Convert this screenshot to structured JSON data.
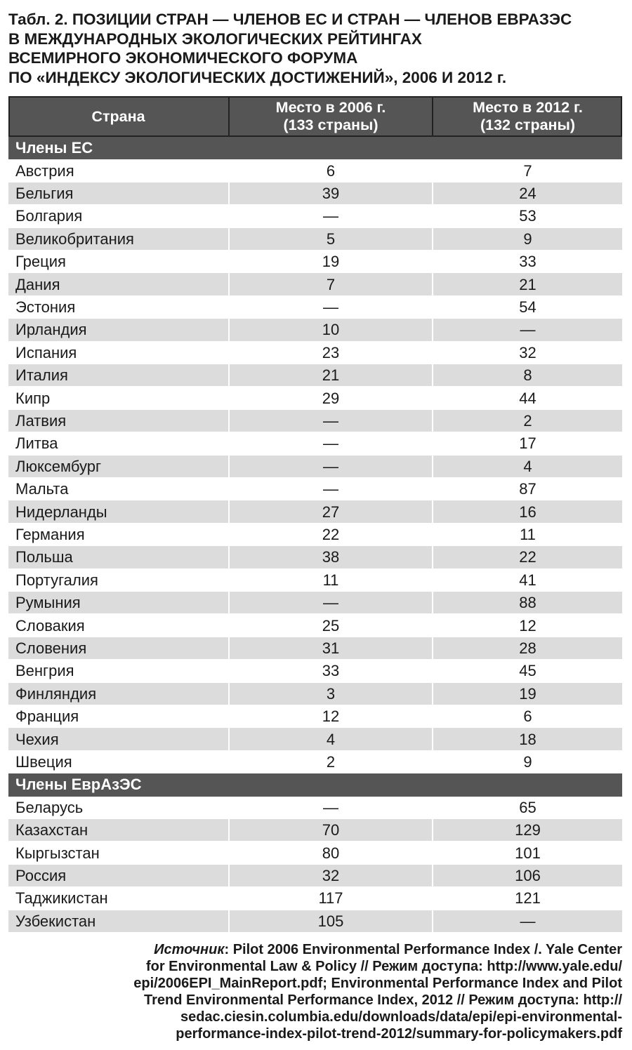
{
  "title": {
    "lines": [
      "Табл. 2. ПОЗИЦИИ СТРАН — ЧЛЕНОВ ЕС И СТРАН — ЧЛЕНОВ ЕВРАЗЭС",
      "В МЕЖДУНАРОДНЫХ ЭКОЛОГИЧЕСКИХ РЕЙТИНГАХ",
      "ВСЕМИРНОГО ЭКОНОМИЧЕСКОГО ФОРУМА",
      "ПО «ИНДЕКСУ ЭКОЛОГИЧЕСКИХ ДОСТИЖЕНИЙ», 2006 И 2012 г."
    ]
  },
  "table": {
    "columns": [
      [
        "Страна"
      ],
      [
        "Место в 2006 г.",
        "(133 страны)"
      ],
      [
        "Место в 2012 г.",
        "(132 страны)"
      ]
    ],
    "sections": [
      {
        "name": "Члены ЕС",
        "rows": [
          [
            "Австрия",
            6,
            7
          ],
          [
            "Бельгия",
            39,
            24
          ],
          [
            "Болгария",
            "—",
            53
          ],
          [
            "Великобритания",
            5,
            9
          ],
          [
            "Греция",
            19,
            33
          ],
          [
            "Дания",
            7,
            21
          ],
          [
            "Эстония",
            "—",
            54
          ],
          [
            "Ирландия",
            10,
            "—"
          ],
          [
            "Испания",
            23,
            32
          ],
          [
            "Италия",
            21,
            8
          ],
          [
            "Кипр",
            29,
            44
          ],
          [
            "Латвия",
            "—",
            2
          ],
          [
            "Литва",
            "—",
            17
          ],
          [
            "Люксембург",
            "—",
            4
          ],
          [
            "Мальта",
            "—",
            87
          ],
          [
            "Нидерланды",
            27,
            16
          ],
          [
            "Германия",
            22,
            11
          ],
          [
            "Польша",
            38,
            22
          ],
          [
            "Португалия",
            11,
            41
          ],
          [
            "Румыния",
            "—",
            88
          ],
          [
            "Словакия",
            25,
            12
          ],
          [
            "Словения",
            31,
            28
          ],
          [
            "Венгрия",
            33,
            45
          ],
          [
            "Финляндия",
            3,
            19
          ],
          [
            "Франция",
            12,
            6
          ],
          [
            "Чехия",
            4,
            18
          ],
          [
            "Швеция",
            2,
            9
          ]
        ]
      },
      {
        "name": "Члены ЕврАзЭС",
        "rows": [
          [
            "Беларусь",
            "—",
            65
          ],
          [
            "Казахстан",
            70,
            129
          ],
          [
            "Кыргызстан",
            80,
            101
          ],
          [
            "Россия",
            32,
            106
          ],
          [
            "Таджикистан",
            117,
            121
          ],
          [
            "Узбекистан",
            105,
            "—"
          ]
        ]
      }
    ]
  },
  "source": {
    "label": "Источник",
    "lines": [
      ": Pilot 2006 Environmental Performance Index /. Yale Center",
      "for Environmental Law & Policy // Режим доступа: http://www.yale.edu/",
      "epi/2006EPI_MainReport.pdf; Environmental Performance Index and Pilot",
      "Trend Environmental Performance Index, 2012 // Режим доступа: http://",
      "sedac.ciesin.columbia.edu/downloads/data/epi/epi-environmental-",
      "performance-index-pilot-trend-2012/summary-for-policymakers.pdf"
    ]
  }
}
